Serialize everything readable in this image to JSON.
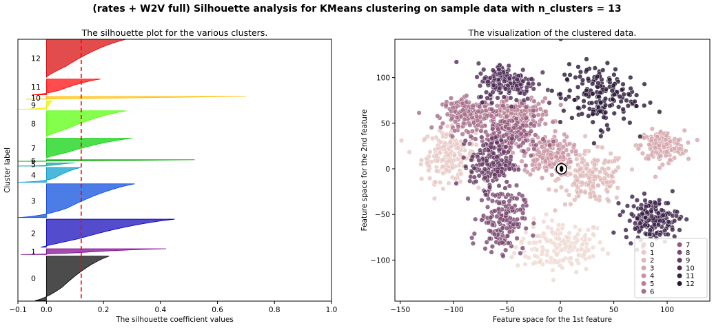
{
  "suptitle": "(rates + W2V full) Silhouette analysis for KMeans clustering on sample data with n_clusters = 13",
  "chart_data": [
    {
      "type": "area",
      "title": "The silhouette plot for the various clusters.",
      "xlabel": "The silhouette coefficient values",
      "ylabel": "Cluster label",
      "xlim": [
        -0.1,
        1.0
      ],
      "ylim": [
        0,
        1
      ],
      "xticks": [
        -0.1,
        0.0,
        0.2,
        0.4,
        0.6,
        0.8,
        1.0
      ],
      "xtick_labels": [
        "−0.1",
        "0.0",
        "0.2",
        "0.4",
        "0.6",
        "0.8",
        "1.0"
      ],
      "grid": false,
      "average_silhouette_line": {
        "x": 0.122,
        "style": "dashed",
        "color": "#ff0000"
      },
      "clusters": [
        {
          "label": "0",
          "y_range": [
            0.002,
            0.172
          ],
          "min": -0.04,
          "max": 0.22,
          "color": "#000000"
        },
        {
          "label": "1",
          "y_range": [
            0.178,
            0.2
          ],
          "min": -0.09,
          "max": 0.42,
          "color": "#7d008d"
        },
        {
          "label": "2",
          "y_range": [
            0.206,
            0.313
          ],
          "min": -0.02,
          "max": 0.45,
          "color": "#0a00b8"
        },
        {
          "label": "3",
          "y_range": [
            0.319,
            0.448
          ],
          "min": -0.1,
          "max": 0.31,
          "color": "#0046dd"
        },
        {
          "label": "4",
          "y_range": [
            0.454,
            0.51
          ],
          "min": -0.1,
          "max": 0.12,
          "color": "#009bcd"
        },
        {
          "label": "5",
          "y_range": [
            0.516,
            0.528
          ],
          "min": -0.1,
          "max": 0.1,
          "color": "#00a397"
        },
        {
          "label": "6",
          "y_range": [
            0.534,
            0.54
          ],
          "min": -0.1,
          "max": 0.52,
          "color": "#00a700"
        },
        {
          "label": "7",
          "y_range": [
            0.546,
            0.622
          ],
          "min": 0.0,
          "max": 0.3,
          "color": "#00d000"
        },
        {
          "label": "8",
          "y_range": [
            0.628,
            0.727
          ],
          "min": 0.0,
          "max": 0.28,
          "color": "#50ff00"
        },
        {
          "label": "9",
          "y_range": [
            0.733,
            0.765
          ],
          "min": -0.1,
          "max": 0.02,
          "color": "#eaf000"
        },
        {
          "label": "10",
          "y_range": [
            0.771,
            0.782
          ],
          "min": -0.07,
          "max": 0.7,
          "color": "#ffbd00"
        },
        {
          "label": "11",
          "y_range": [
            0.788,
            0.848
          ],
          "min": -0.05,
          "max": 0.19,
          "color": "#ff0000"
        },
        {
          "label": "12",
          "y_range": [
            0.854,
            1.0
          ],
          "min": 0.0,
          "max": 0.28,
          "color": "#d50000"
        }
      ]
    },
    {
      "type": "scatter",
      "title": "The visualization of the clustered data.",
      "xlabel": "Feature space for the 1st feature",
      "ylabel": "Feature space for the 2nd feature",
      "xlim": [
        -155,
        140
      ],
      "ylim": [
        -145,
        142
      ],
      "xticks": [
        -150,
        -100,
        -50,
        0,
        50,
        100
      ],
      "xtick_labels": [
        "−150",
        "−100",
        "−50",
        "0",
        "50",
        "100"
      ],
      "yticks": [
        -100,
        -50,
        0,
        50,
        100
      ],
      "ytick_labels": [
        "−100",
        "−50",
        "0",
        "50",
        "100"
      ],
      "grid": false,
      "legend_position": "bottom-right",
      "legend_columns": 2,
      "clusters": [
        {
          "label": "0",
          "color": "#efd9d2",
          "center": [
            0,
            -85
          ],
          "spread": [
            30,
            20
          ]
        },
        {
          "label": "1",
          "color": "#e8c8c4",
          "center": [
            -105,
            15
          ],
          "spread": [
            18,
            20
          ]
        },
        {
          "label": "2",
          "color": "#e0b8b8",
          "center": [
            30,
            -10
          ],
          "spread": [
            22,
            20
          ]
        },
        {
          "label": "3",
          "color": "#d6a6ac",
          "center": [
            95,
            25
          ],
          "spread": [
            15,
            12
          ]
        },
        {
          "label": "4",
          "color": "#c993a1",
          "center": [
            -12,
            15
          ],
          "spread": [
            16,
            16
          ]
        },
        {
          "label": "5",
          "color": "#b98094",
          "center": [
            -40,
            60
          ],
          "spread": [
            22,
            12
          ]
        },
        {
          "label": "6",
          "color": "#a66e88",
          "center": [
            -85,
            60
          ],
          "spread": [
            18,
            12
          ]
        },
        {
          "label": "7",
          "color": "#92597b",
          "center": [
            -48,
            35
          ],
          "spread": [
            20,
            18
          ]
        },
        {
          "label": "8",
          "color": "#7b4870",
          "center": [
            -55,
            -55
          ],
          "spread": [
            15,
            25
          ]
        },
        {
          "label": "9",
          "color": "#653a62",
          "center": [
            -65,
            5
          ],
          "spread": [
            14,
            20
          ]
        },
        {
          "label": "10",
          "color": "#4e2c55",
          "center": [
            -50,
            95
          ],
          "spread": [
            20,
            15
          ]
        },
        {
          "label": "11",
          "color": "#3a2146",
          "center": [
            85,
            -55
          ],
          "spread": [
            18,
            16
          ]
        },
        {
          "label": "12",
          "color": "#281634",
          "center": [
            35,
            80
          ],
          "spread": [
            25,
            25
          ]
        }
      ],
      "centroid_marker": {
        "x": 1,
        "y": 0
      }
    }
  ]
}
